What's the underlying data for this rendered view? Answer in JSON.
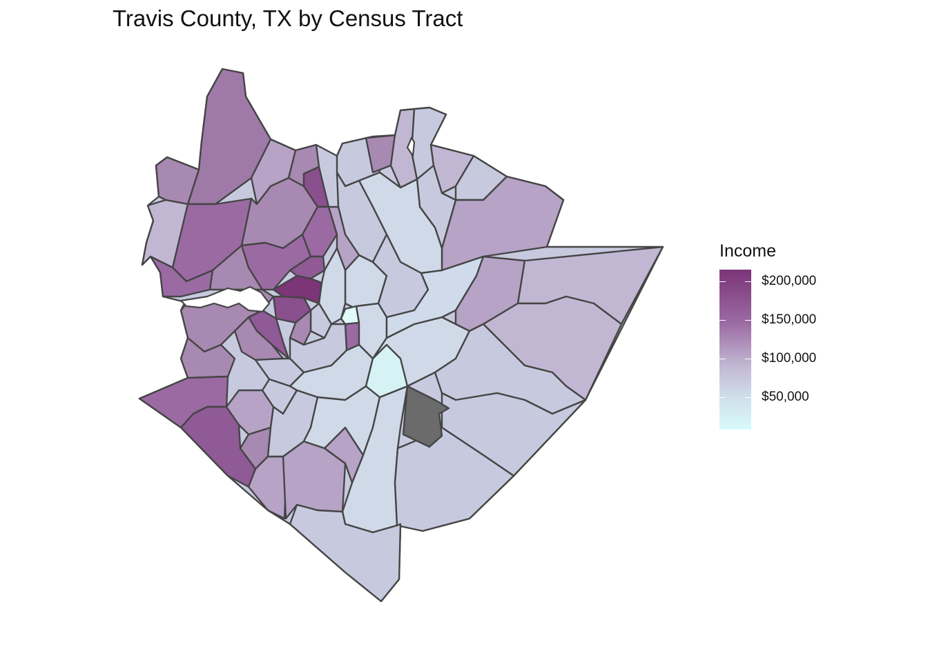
{
  "title": "Travis County, TX by Census Tract",
  "legend": {
    "title": "Income",
    "labels": [
      "$200,000",
      "$150,000",
      "$100,000",
      "$50,000"
    ],
    "values": [
      200000,
      150000,
      100000,
      50000
    ],
    "low_color": "#d9fbfb",
    "high_color": "#7b3578",
    "na_color": "#6b6b6b"
  }
}
